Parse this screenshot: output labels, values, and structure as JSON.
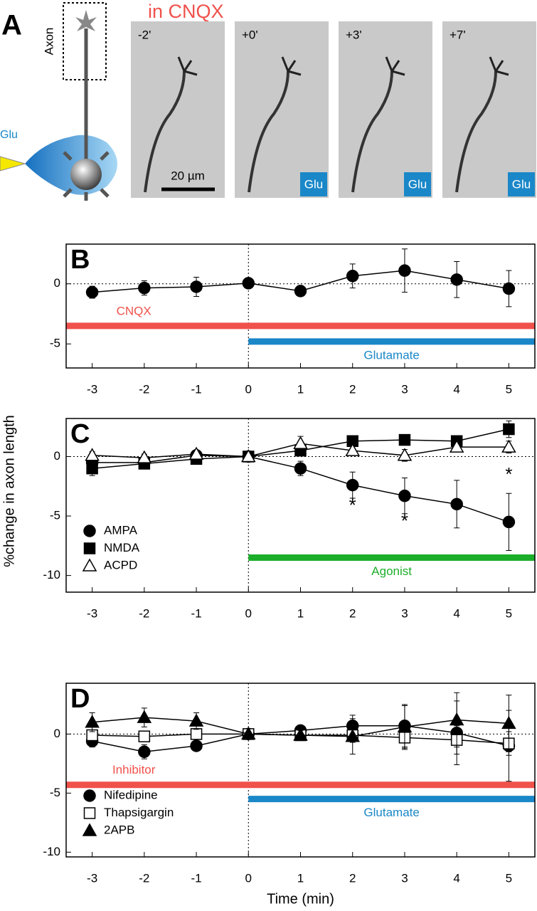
{
  "panel_a": {
    "label": "A",
    "title": "in CNQX",
    "axon": "Axon",
    "glu": "Glu",
    "scale_bar": "20 µm",
    "frames": [
      {
        "time": "-2'"
      },
      {
        "time": "+0'",
        "stim": "Glu"
      },
      {
        "time": "+3'",
        "stim": "Glu"
      },
      {
        "time": "+7'",
        "stim": "Glu"
      }
    ]
  },
  "chart_data": [
    {
      "type": "line",
      "label": "B",
      "x": [
        -3,
        -2,
        -1,
        0,
        1,
        2,
        3,
        4,
        5
      ],
      "xticks": [
        -3,
        -2,
        -1,
        0,
        1,
        2,
        3,
        4,
        5
      ],
      "xlim": [
        -3.5,
        5.5
      ],
      "ylim": [
        -7,
        3.3
      ],
      "yticks": [
        -5,
        0
      ],
      "hline": 0,
      "vline": 0,
      "series": [
        {
          "color": "#000000",
          "marker": "circle",
          "fill": true,
          "values": [
            -0.7,
            -0.35,
            -0.25,
            0.05,
            -0.6,
            0.65,
            1.1,
            0.35,
            -0.4
          ],
          "errors": [
            0.5,
            0.6,
            0.8,
            0.1,
            0.3,
            1.0,
            1.8,
            1.5,
            1.5
          ]
        }
      ],
      "periods": [
        {
          "label": "CNQX",
          "color": "#f0514b",
          "from": -3.5,
          "to": 5.5,
          "y": -3.5
        },
        {
          "label": "Glutamate",
          "color": "#1a87c8",
          "from": 0,
          "to": 5.5,
          "y": -4.8
        }
      ]
    },
    {
      "type": "line",
      "label": "C",
      "ylabel": "%change in axon length",
      "x": [
        -3,
        -2,
        -1,
        0,
        1,
        2,
        3,
        4,
        5
      ],
      "xticks": [
        -3,
        -2,
        -1,
        0,
        1,
        2,
        3,
        4,
        5
      ],
      "xlim": [
        -3.5,
        5.5
      ],
      "ylim": [
        -11.4,
        3.2
      ],
      "yticks": [
        -10,
        -5,
        0
      ],
      "hline": 0,
      "vline": 0,
      "legend": "lower left",
      "series": [
        {
          "name": "AMPA",
          "color": "#000000",
          "marker": "circle",
          "fill": true,
          "values": [
            -0.5,
            -0.5,
            0.1,
            0,
            -1.0,
            -2.4,
            -3.3,
            -4.0,
            -5.5
          ],
          "errors": [
            0.6,
            0.3,
            0.3,
            0.1,
            0.6,
            1.1,
            1.5,
            2.0,
            2.4
          ]
        },
        {
          "name": "NMDA",
          "color": "#000000",
          "marker": "square",
          "fill": true,
          "values": [
            -1.0,
            -0.6,
            -0.2,
            0,
            0.5,
            1.3,
            1.4,
            1.3,
            2.3
          ],
          "errors": [
            0.6,
            0.3,
            0.3,
            0.1,
            0.3,
            0.3,
            0.3,
            0.3,
            0.7
          ]
        },
        {
          "name": "ACPD",
          "color": "#000000",
          "marker": "triangle",
          "fill": false,
          "values": [
            0.1,
            -0.1,
            0.2,
            0,
            1.1,
            0.5,
            0.1,
            0.8,
            0.8
          ],
          "errors": [
            0.3,
            0.3,
            0.3,
            0.1,
            0.6,
            0.4,
            0.5,
            0.4,
            0.5
          ]
        }
      ],
      "annotations": [
        {
          "text": "*",
          "x": 2,
          "y": -4.2
        },
        {
          "text": "*",
          "x": 3,
          "y": -5.5
        },
        {
          "text": "*",
          "x": 5,
          "y": -1.6
        }
      ],
      "periods": [
        {
          "label": "Agonist",
          "color": "#1cae2a",
          "from": 0,
          "to": 5.5,
          "y": -8.5
        }
      ]
    },
    {
      "type": "line",
      "label": "D",
      "xlabel": "Time (min)",
      "x": [
        -3,
        -2,
        -1,
        0,
        1,
        2,
        3,
        4,
        5
      ],
      "xticks": [
        -3,
        -2,
        -1,
        0,
        1,
        2,
        3,
        4,
        5
      ],
      "xlim": [
        -3.5,
        5.5
      ],
      "ylim": [
        -10.4,
        4.3
      ],
      "yticks": [
        -10,
        -5,
        0
      ],
      "hline": 0,
      "vline": 0,
      "legend": "lower left",
      "series": [
        {
          "name": "Nifedipine",
          "color": "#000000",
          "marker": "circle",
          "fill": true,
          "values": [
            -0.6,
            -1.5,
            -1.0,
            0,
            0.3,
            0.7,
            0.7,
            0.1,
            -1.0
          ],
          "errors": [
            0.5,
            0.6,
            0.4,
            0.1,
            0.3,
            0.9,
            1.8,
            2.7,
            3.0
          ]
        },
        {
          "name": "Thapsigargin",
          "color": "#000000",
          "marker": "square",
          "fill": false,
          "values": [
            -0.1,
            -0.2,
            0,
            0,
            -0.1,
            -0.1,
            -0.3,
            -0.5,
            -0.8
          ],
          "errors": [
            0.3,
            0.4,
            0.3,
            0.1,
            0.3,
            0.6,
            1.0,
            1.2,
            1.0
          ]
        },
        {
          "name": "2APB",
          "color": "#000000",
          "marker": "triangle",
          "fill": true,
          "values": [
            1.0,
            1.4,
            1.1,
            0,
            -0.1,
            -0.2,
            0.6,
            1.2,
            0.9
          ],
          "errors": [
            0.8,
            0.8,
            0.7,
            0.1,
            0.4,
            1.5,
            1.8,
            2.3,
            2.4
          ]
        }
      ],
      "periods": [
        {
          "label": "Inhibitor",
          "color": "#f0514b",
          "from": -3.5,
          "to": 5.5,
          "y": -4.3
        },
        {
          "label": "Glutamate",
          "color": "#1a87c8",
          "from": 0,
          "to": 5.5,
          "y": -5.5
        }
      ]
    }
  ]
}
